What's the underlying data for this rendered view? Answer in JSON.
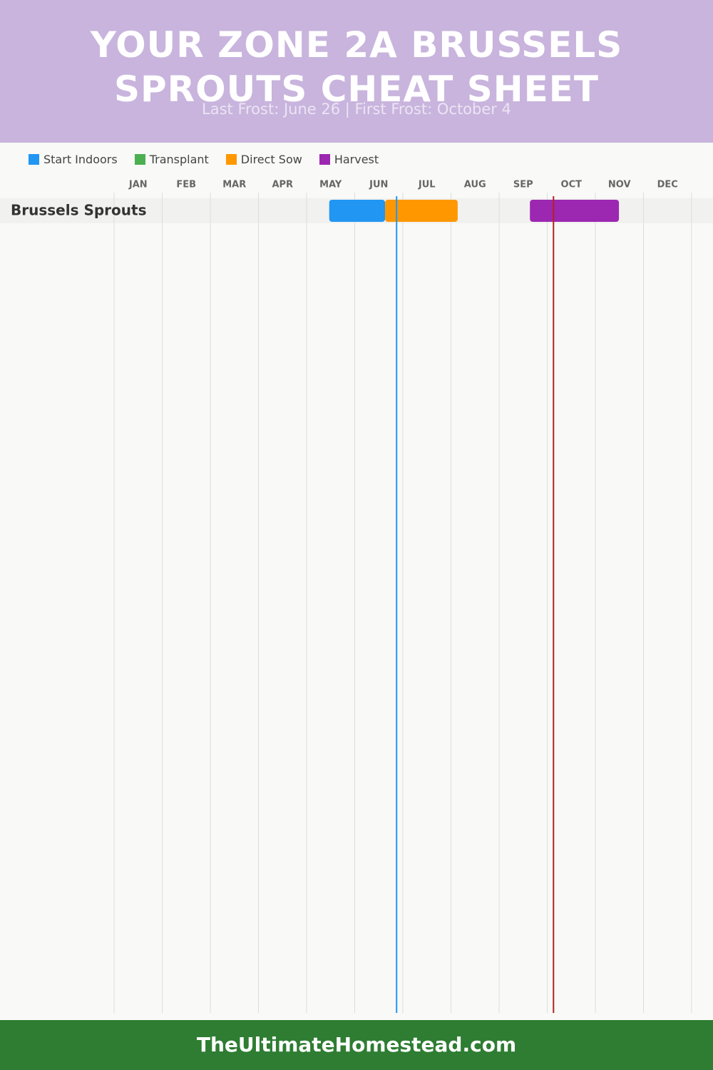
{
  "chart_data": {
    "type": "gantt",
    "title": "YOUR ZONE 2A BRUSSELS SPROUTS CHEAT SHEET",
    "subtitle": "Last Frost: June 26 | First Frost: October 4",
    "footer": "TheUltimateHomestead.com",
    "categories": [
      "Brussels Sprouts"
    ],
    "months": [
      "JAN",
      "FEB",
      "MAR",
      "APR",
      "MAY",
      "JUN",
      "JUL",
      "AUG",
      "SEP",
      "OCT",
      "NOV",
      "DEC"
    ],
    "xlim": [
      0,
      12
    ],
    "xticks": [
      0,
      1,
      2,
      3,
      4,
      5,
      6,
      7,
      8,
      9,
      10,
      11,
      12
    ],
    "grid": true,
    "series": [
      {
        "name": "Start Indoors",
        "color": "#2196f3",
        "start": 4.47,
        "end": 5.63
      },
      {
        "name": "Transplant",
        "color": "#4caf50",
        "start": null,
        "end": null
      },
      {
        "name": "Direct Sow",
        "color": "#ff9800",
        "start": 5.63,
        "end": 7.14
      },
      {
        "name": "Harvest",
        "color": "#9c27b0",
        "start": 8.64,
        "end": 10.49
      }
    ],
    "markers": [
      {
        "value": 5.87,
        "color": "#2196f3"
      },
      {
        "value": 9.13,
        "color": "#b22222"
      }
    ]
  }
}
